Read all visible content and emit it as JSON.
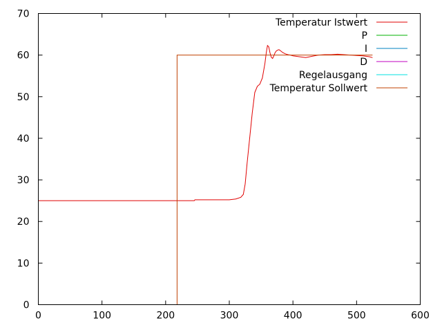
{
  "chart_data": {
    "type": "line",
    "title": "",
    "xlabel": "",
    "ylabel": "",
    "xlim": [
      0,
      600
    ],
    "ylim": [
      0,
      70
    ],
    "x_ticks": [
      0,
      100,
      200,
      300,
      400,
      500,
      600
    ],
    "y_ticks": [
      0,
      10,
      20,
      30,
      40,
      50,
      60,
      70
    ],
    "grid": false,
    "legend_position": "top-right",
    "series": [
      {
        "name": "Temperatur Istwert",
        "color": "#e00000",
        "x": [
          0,
          245,
          246,
          300,
          310,
          318,
          322,
          325,
          328,
          332,
          336,
          340,
          344,
          348,
          352,
          356,
          358,
          360,
          362,
          364,
          366,
          368,
          370,
          372,
          374,
          376,
          378,
          380,
          384,
          388,
          392,
          396,
          400,
          410,
          420,
          430,
          440,
          450,
          460,
          470,
          480,
          490,
          500,
          510,
          520,
          525
        ],
        "y": [
          25,
          25,
          25.2,
          25.2,
          25.4,
          25.8,
          26.5,
          29,
          34,
          40,
          46,
          51,
          52.5,
          53,
          54.5,
          58,
          60.5,
          62.3,
          62,
          60.5,
          59.5,
          59.2,
          59.8,
          60.6,
          61,
          61.2,
          61.3,
          61.1,
          60.6,
          60.3,
          60.1,
          60,
          59.8,
          59.6,
          59.4,
          59.7,
          60,
          60.1,
          60.1,
          60.2,
          60.1,
          60,
          59.9,
          59.8,
          59.6,
          59.4
        ]
      },
      {
        "name": "P",
        "color": "#00b000",
        "x": [],
        "y": []
      },
      {
        "name": "I",
        "color": "#0080c0",
        "x": [],
        "y": []
      },
      {
        "name": "D",
        "color": "#c000c0",
        "x": [],
        "y": []
      },
      {
        "name": "Regelausgang",
        "color": "#00e0e0",
        "x": [],
        "y": []
      },
      {
        "name": "Temperatur Sollwert",
        "color": "#c04000",
        "x": [
          218,
          218,
          218,
          525
        ],
        "y": [
          0,
          0,
          60,
          60
        ]
      }
    ]
  }
}
